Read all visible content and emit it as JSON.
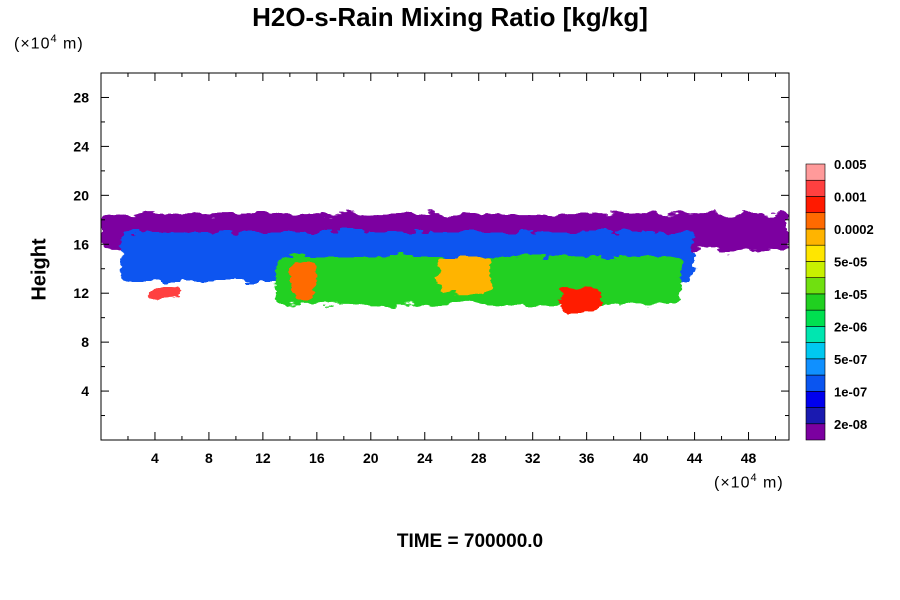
{
  "chart_data": {
    "type": "heatmap",
    "title": "H2O-s-Rain Mixing Ratio [kg/kg]",
    "ylabel": "Height",
    "y_unit": "(×10",
    "x_unit": "(×10",
    "unit_exp": "4",
    "unit_tail": " m)",
    "footer": "TIME = 700000.0",
    "xlim": [
      0,
      51
    ],
    "ylim": [
      0,
      30
    ],
    "x_ticks": [
      "4",
      "8",
      "12",
      "16",
      "20",
      "24",
      "28",
      "32",
      "36",
      "40",
      "44",
      "48"
    ],
    "x_tick_values": [
      4,
      8,
      12,
      16,
      20,
      24,
      28,
      32,
      36,
      40,
      44,
      48
    ],
    "y_ticks": [
      "4",
      "8",
      "12",
      "16",
      "20",
      "24",
      "28"
    ],
    "y_tick_values": [
      4,
      8,
      12,
      16,
      20,
      24,
      28
    ],
    "colorbar": {
      "colors": [
        "#7b00a0",
        "#1a1ab0",
        "#0000ee",
        "#0a55f0",
        "#1090ff",
        "#00c8f0",
        "#00e6b0",
        "#00e050",
        "#20d020",
        "#70e010",
        "#c8f000",
        "#ffe600",
        "#ffb400",
        "#ff6a00",
        "#ff1a00",
        "#ff4040",
        "#ff9a9a"
      ],
      "labels": [
        "2e-08",
        "1e-07",
        "5e-07",
        "2e-06",
        "1e-05",
        "5e-05",
        "0.0002",
        "0.001",
        "0.005"
      ]
    },
    "regions": [
      {
        "level": 0,
        "x": [
          0,
          51
        ],
        "y": [
          15.5,
          18.5
        ]
      },
      {
        "level": 3,
        "x": [
          1.5,
          44
        ],
        "y": [
          13,
          17
        ]
      },
      {
        "level": 8,
        "x": [
          13,
          43
        ],
        "y": [
          11,
          15
        ]
      },
      {
        "level": 13,
        "x": [
          14,
          16
        ],
        "y": [
          11.5,
          14.5
        ]
      },
      {
        "level": 12,
        "x": [
          25,
          29
        ],
        "y": [
          12,
          15
        ]
      },
      {
        "level": 14,
        "x": [
          34,
          37
        ],
        "y": [
          10.5,
          12.5
        ]
      },
      {
        "level": 15,
        "x": [
          3.5,
          6
        ],
        "y": [
          11.5,
          12.5
        ]
      }
    ]
  }
}
